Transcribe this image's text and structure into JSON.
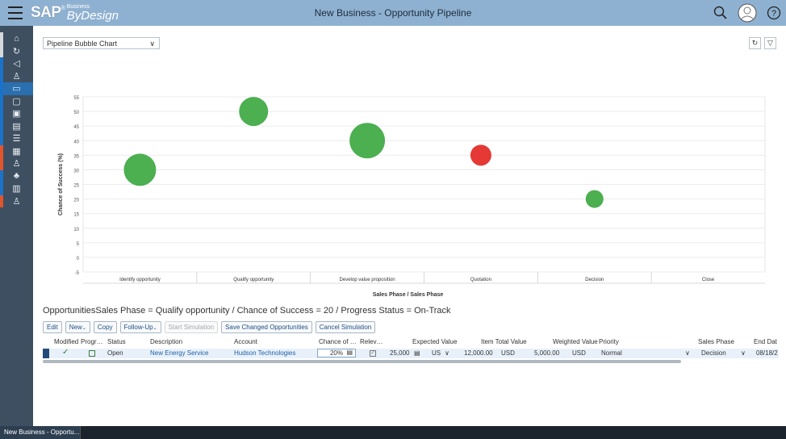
{
  "shell": {
    "logo_main": "SAP",
    "logo_reg": "®",
    "logo_business": "Business",
    "logo_bydesign": "ByDesign",
    "title": "New Business - Opportunity Pipeline",
    "icons": [
      "search-icon",
      "user-avatar-icon",
      "help-icon"
    ]
  },
  "sidebar": {
    "items": [
      {
        "icon": "home-icon",
        "glyph": "⌂",
        "accent": "#d5d9dd"
      },
      {
        "icon": "refresh-icon",
        "glyph": "↻",
        "accent": "#d5d9dd"
      },
      {
        "icon": "megaphone-icon",
        "glyph": "◁",
        "accent": "#1a73c9"
      },
      {
        "icon": "contacts-icon",
        "glyph": "♙",
        "accent": "#1a73c9"
      },
      {
        "icon": "business-card-icon",
        "glyph": "▭",
        "accent": "#1a73c9",
        "active": true
      },
      {
        "icon": "document-icon",
        "glyph": "▢",
        "accent": "#1a73c9"
      },
      {
        "icon": "documents-icon",
        "glyph": "▣",
        "accent": "#1a73c9"
      },
      {
        "icon": "clipboard-icon",
        "glyph": "▤",
        "accent": "#1a73c9"
      },
      {
        "icon": "checklist-icon",
        "glyph": "☰",
        "accent": "#1a73c9"
      },
      {
        "icon": "calendar-icon",
        "glyph": "▦",
        "accent": "#e0552b"
      },
      {
        "icon": "team-icon",
        "glyph": "♙",
        "accent": "#e0552b"
      },
      {
        "icon": "handshake-icon",
        "glyph": "♣",
        "accent": "#1a73c9"
      },
      {
        "icon": "tablet-icon",
        "glyph": "▥",
        "accent": "#1a73c9"
      },
      {
        "icon": "support-agent-icon",
        "glyph": "♙",
        "accent": "#e0552b"
      }
    ]
  },
  "view": {
    "selected": "Pipeline Bubble Chart",
    "refresh_icon": "refresh-icon",
    "filter_icon": "filter-icon"
  },
  "chart_data": {
    "type": "scatter",
    "title": "",
    "xlabel": "Sales Phase / Sales Phase",
    "ylabel": "Chance of Success (%)",
    "categories": [
      "Identify opportunity",
      "Qualify opportunity",
      "Develop value proposition",
      "Quotation",
      "Decision",
      "Close"
    ],
    "ylim": [
      -5,
      55
    ],
    "yticks": [
      55,
      50,
      45,
      40,
      35,
      30,
      25,
      20,
      15,
      10,
      5,
      0,
      -5
    ],
    "grid": true,
    "bubbles": [
      {
        "category": "Identify opportunity",
        "y": 30,
        "size": "large",
        "color": "#4caf50"
      },
      {
        "category": "Qualify opportunity",
        "y": 50,
        "size": "medium",
        "color": "#4caf50"
      },
      {
        "category": "Develop value proposition",
        "y": 40,
        "size": "xlarge",
        "color": "#4caf50"
      },
      {
        "category": "Quotation",
        "y": 35,
        "size": "medium-small",
        "color": "#e53935"
      },
      {
        "category": "Decision",
        "y": 20,
        "size": "small",
        "color": "#4caf50"
      }
    ]
  },
  "filter_text": "OpportunitiesSales Phase = Qualify opportunity / Chance of Success = 20 / Progress Status = On-Track",
  "toolbar": {
    "edit": "Edit",
    "new": "New",
    "copy": "Copy",
    "follow_up": "Follow-Up",
    "start_simulation": "Start Simulation",
    "save_changed": "Save Changed Opportunities",
    "cancel_simulation": "Cancel Simulation"
  },
  "table": {
    "headers": {
      "modified": "Modified",
      "progress": "Progr…",
      "status": "Status",
      "description": "Description",
      "account": "Account",
      "chance": "Chance of …",
      "relevant": "Relev…",
      "expected_value": "Expected Value",
      "item_total_value": "Item Total Value",
      "weighted_value": "Weighted Value",
      "priority": "Priority",
      "sales_phase": "Sales Phase",
      "end_date": "End Dat"
    },
    "rows": [
      {
        "status": "Open",
        "description": "New Energy Service",
        "account": "Hudson Technologies",
        "chance": "20%",
        "expected_value": "25,000",
        "expected_currency": "US",
        "item_total_value": "12,000.00",
        "item_total_currency": "USD",
        "weighted_value": "5,000.00",
        "weighted_currency": "USD",
        "priority": "Normal",
        "sales_phase": "Decision",
        "end_date": "08/18/2"
      }
    ]
  },
  "taskbar": {
    "item": "New Business - Opportu..."
  }
}
